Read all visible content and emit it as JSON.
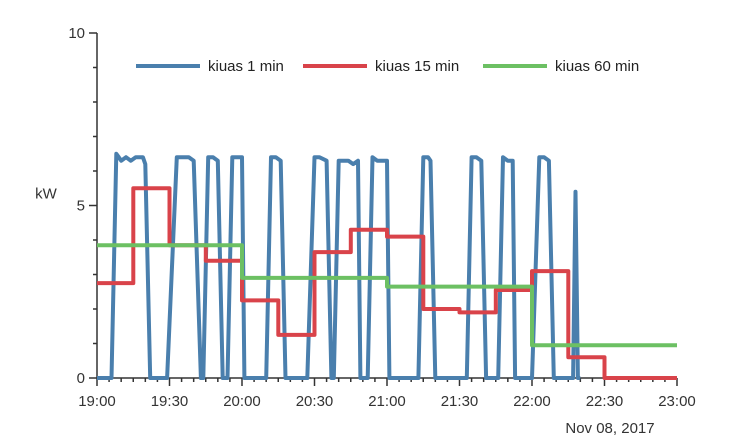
{
  "chart_data": {
    "type": "line",
    "ylabel": "kW",
    "xlabel": "",
    "date_label": "Nov 08, 2017",
    "ylim": [
      0,
      10
    ],
    "xlim": [
      "19:00",
      "23:00"
    ],
    "grid": false,
    "legend_position": "top",
    "y_ticks": [
      0,
      5,
      10
    ],
    "y_tick_labels": [
      "0",
      "5",
      "10"
    ],
    "x_ticks": [
      "19:00",
      "19:30",
      "20:00",
      "20:30",
      "21:00",
      "21:30",
      "22:00",
      "22:30",
      "23:00"
    ],
    "series": [
      {
        "name": "kiuas 1 min",
        "color": "#4a7fad",
        "step": false,
        "points": [
          [
            "19:00",
            0
          ],
          [
            "19:06",
            0
          ],
          [
            "19:08",
            6.5
          ],
          [
            "19:09",
            6.4
          ],
          [
            "19:10",
            6.3
          ],
          [
            "19:12",
            6.4
          ],
          [
            "19:14",
            6.3
          ],
          [
            "19:16",
            6.4
          ],
          [
            "19:18",
            6.4
          ],
          [
            "19:19",
            6.4
          ],
          [
            "19:20",
            6.2
          ],
          [
            "19:22",
            0
          ],
          [
            "19:29",
            0
          ],
          [
            "19:33",
            6.4
          ],
          [
            "19:35",
            6.4
          ],
          [
            "19:38",
            6.4
          ],
          [
            "19:40",
            6.3
          ],
          [
            "19:43",
            0
          ],
          [
            "19:44",
            0
          ],
          [
            "19:46",
            6.4
          ],
          [
            "19:48",
            6.4
          ],
          [
            "19:50",
            6.3
          ],
          [
            "19:52",
            0
          ],
          [
            "19:54",
            0
          ],
          [
            "19:56",
            6.4
          ],
          [
            "19:58",
            6.4
          ],
          [
            "20:00",
            6.4
          ],
          [
            "20:01",
            0
          ],
          [
            "20:10",
            0
          ],
          [
            "20:12",
            6.4
          ],
          [
            "20:14",
            6.4
          ],
          [
            "20:16",
            6.3
          ],
          [
            "20:18",
            0
          ],
          [
            "20:27",
            0
          ],
          [
            "20:30",
            6.4
          ],
          [
            "20:32",
            6.4
          ],
          [
            "20:35",
            6.3
          ],
          [
            "20:37",
            0
          ],
          [
            "20:38",
            0
          ],
          [
            "20:40",
            6.3
          ],
          [
            "20:42",
            6.3
          ],
          [
            "20:44",
            6.3
          ],
          [
            "20:46",
            6.2
          ],
          [
            "20:48",
            6.3
          ],
          [
            "20:49",
            0
          ],
          [
            "20:52",
            0
          ],
          [
            "20:54",
            6.4
          ],
          [
            "20:56",
            6.3
          ],
          [
            "20:58",
            6.3
          ],
          [
            "21:00",
            6.3
          ],
          [
            "21:01",
            0
          ],
          [
            "21:13",
            0
          ],
          [
            "21:15",
            6.4
          ],
          [
            "21:17",
            6.4
          ],
          [
            "21:18",
            6.3
          ],
          [
            "21:20",
            0
          ],
          [
            "21:33",
            0
          ],
          [
            "21:35",
            6.4
          ],
          [
            "21:37",
            6.4
          ],
          [
            "21:39",
            6.3
          ],
          [
            "21:41",
            0
          ],
          [
            "21:46",
            0
          ],
          [
            "21:48",
            6.4
          ],
          [
            "21:50",
            6.3
          ],
          [
            "21:52",
            6.3
          ],
          [
            "21:53",
            0
          ],
          [
            "22:00",
            0
          ],
          [
            "22:03",
            6.4
          ],
          [
            "22:05",
            6.4
          ],
          [
            "22:07",
            6.3
          ],
          [
            "22:09",
            0
          ],
          [
            "22:17",
            0
          ],
          [
            "22:18",
            5.4
          ],
          [
            "22:19",
            0
          ],
          [
            "22:20",
            0
          ]
        ]
      },
      {
        "name": "kiuas 15 min",
        "color": "#d9434a",
        "step": true,
        "points": [
          [
            "19:00",
            2.75
          ],
          [
            "19:15",
            5.5
          ],
          [
            "19:30",
            3.85
          ],
          [
            "19:45",
            3.4
          ],
          [
            "20:00",
            2.25
          ],
          [
            "20:15",
            1.25
          ],
          [
            "20:30",
            3.65
          ],
          [
            "20:45",
            4.3
          ],
          [
            "21:00",
            4.1
          ],
          [
            "21:15",
            2.0
          ],
          [
            "21:30",
            1.9
          ],
          [
            "21:45",
            2.55
          ],
          [
            "22:00",
            3.1
          ],
          [
            "22:15",
            0.6
          ],
          [
            "22:30",
            0
          ],
          [
            "23:00",
            0
          ]
        ]
      },
      {
        "name": "kiuas 60 min",
        "color": "#6cc063",
        "step": true,
        "points": [
          [
            "19:00",
            3.85
          ],
          [
            "20:00",
            2.9
          ],
          [
            "21:00",
            2.65
          ],
          [
            "22:00",
            0.95
          ],
          [
            "23:00",
            0.95
          ]
        ]
      }
    ]
  }
}
